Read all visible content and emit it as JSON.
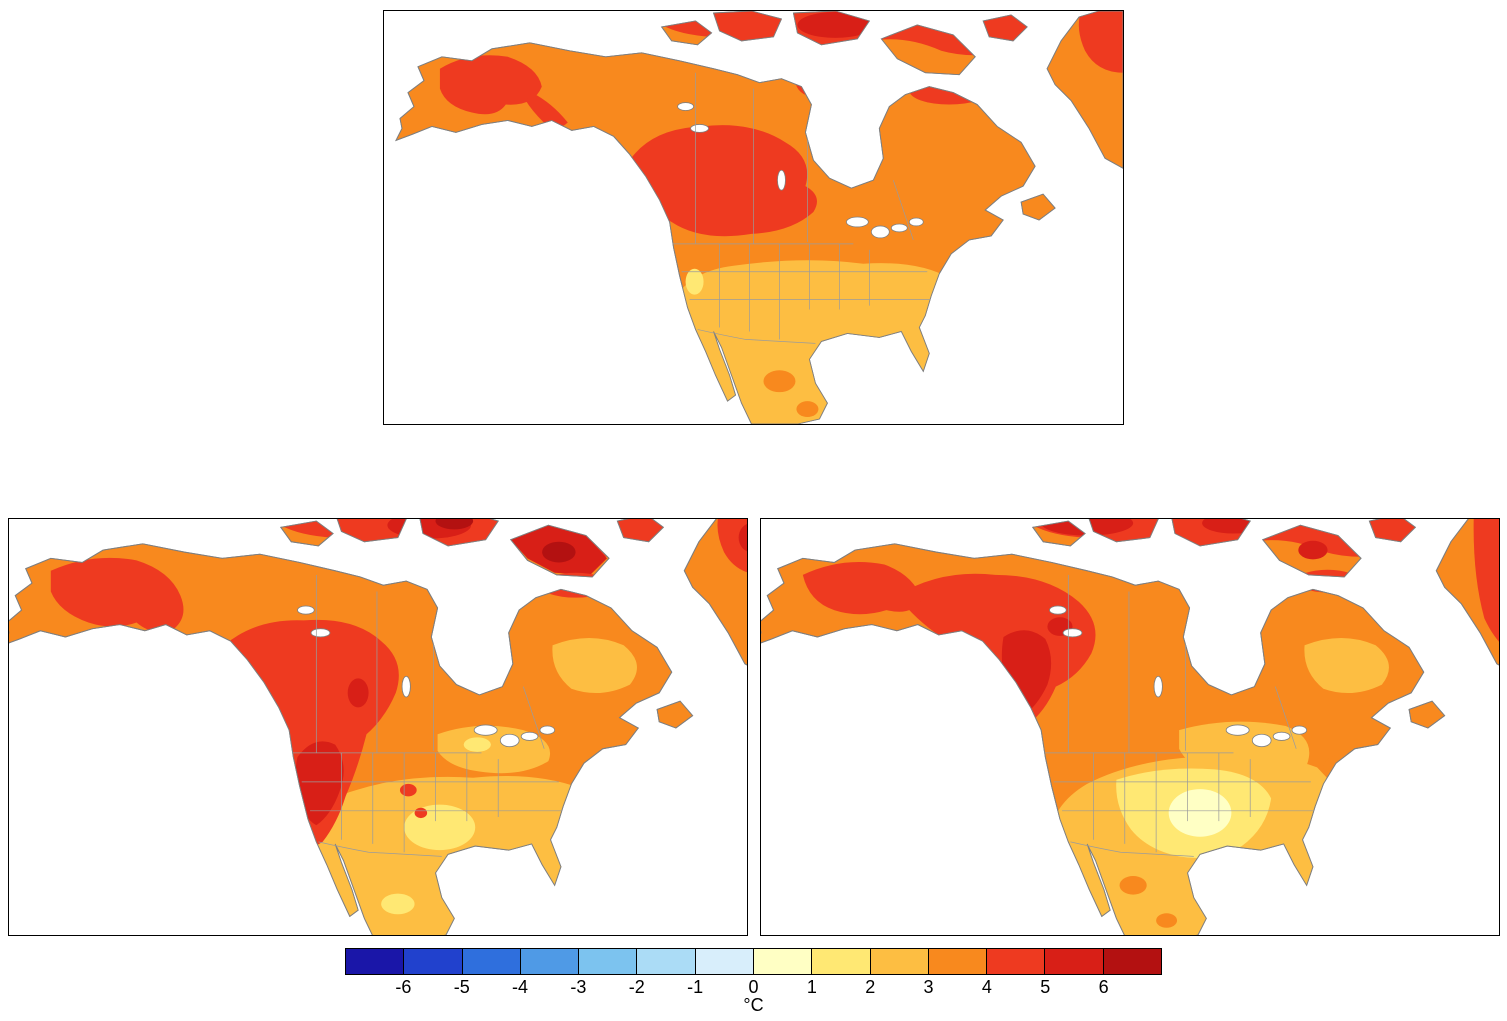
{
  "figure": {
    "type": "map",
    "description": "Three filled-contour maps of North America showing a temperature field in degrees Celsius; all land shaded in the 0 to 6+ range (yellow to dark red).",
    "panels": [
      {
        "name": "panel-top",
        "position": "top center",
        "bands": {
          "dominant_land": "3-4",
          "arctic_islands_north_canada": "4-6",
          "west_central_canada_interior": "4-5",
          "alaska_interior": "4-5",
          "southern_us_mexico_florida": "2-3",
          "great_basin_patch": "1-2"
        }
      },
      {
        "name": "panel-bottom-left",
        "position": "bottom left",
        "bands": {
          "dominant_land": "3-4",
          "arctic_islands_baffin": "5-6 and >6",
          "western_cordillera_us_canada": "4-5 with 5-6 core",
          "alaska_yukon": "4-5",
          "central_southern_us": "2-3",
          "texas_oklahoma_core": "1-2",
          "quebec_east_of_hudson_bay": "2-3"
        }
      },
      {
        "name": "panel-bottom-right",
        "position": "bottom right",
        "bands": {
          "dominant_land": "3-4",
          "arctic_islands": "4-6",
          "northwest_canada_alaska": "4-5 with 5-6 core",
          "central_southern_us": "2-3",
          "south_central_us": "1-2",
          "texas_oklahoma_core": "0-1",
          "quebec_east_of_hudson_bay": "2-3"
        }
      }
    ]
  },
  "colorbar": {
    "unit": "°C",
    "ticks": [
      "-6",
      "-5",
      "-4",
      "-3",
      "-2",
      "-1",
      "0",
      "1",
      "2",
      "3",
      "4",
      "5",
      "6"
    ],
    "segments": [
      "#1a16a8",
      "#2141cd",
      "#2f6fdd",
      "#4f9ae6",
      "#7cc3ef",
      "#abdcf6",
      "#d8eefb",
      "#ffffc4",
      "#ffe873",
      "#fdbe42",
      "#f8891e",
      "#ee3a20",
      "#d81f17",
      "#b31111"
    ]
  },
  "palette": {
    "b0": "#1a16a8",
    "b1": "#2141cd",
    "b2": "#2f6fdd",
    "b3": "#4f9ae6",
    "b4": "#7cc3ef",
    "b5": "#abdcf6",
    "b6": "#d8eefb",
    "b7": "#ffffc4",
    "b8": "#ffe873",
    "b9": "#fdbe42",
    "b10": "#f8891e",
    "b11": "#ee3a20",
    "b12": "#d81f17",
    "b13": "#b31111"
  }
}
